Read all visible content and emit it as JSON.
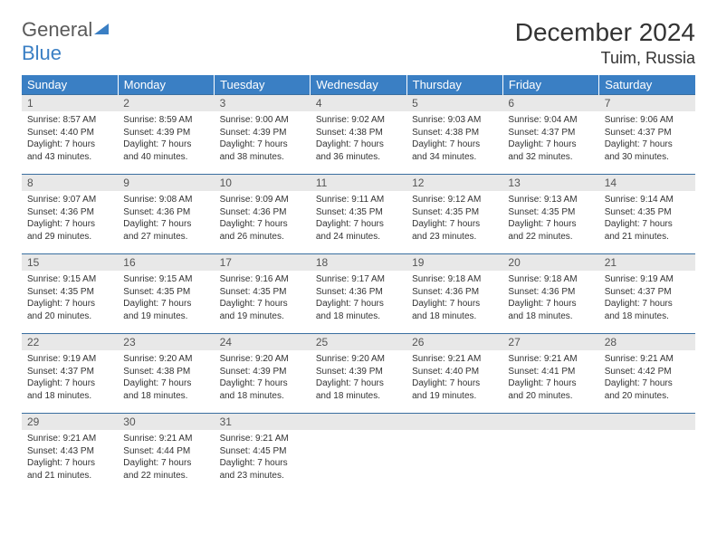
{
  "brand": {
    "part1": "General",
    "part2": "Blue"
  },
  "title": "December 2024",
  "location": "Tuim, Russia",
  "colors": {
    "header_bg": "#3a7fc4",
    "header_text": "#ffffff",
    "daynum_bg": "#e8e8e8",
    "border": "#3a6fa0",
    "brand_gray": "#5a5a5a",
    "brand_blue": "#3a7fc4"
  },
  "dayHeaders": [
    "Sunday",
    "Monday",
    "Tuesday",
    "Wednesday",
    "Thursday",
    "Friday",
    "Saturday"
  ],
  "weeks": [
    [
      {
        "n": "1",
        "sr": "8:57 AM",
        "ss": "4:40 PM",
        "dl": "7 hours and 43 minutes."
      },
      {
        "n": "2",
        "sr": "8:59 AM",
        "ss": "4:39 PM",
        "dl": "7 hours and 40 minutes."
      },
      {
        "n": "3",
        "sr": "9:00 AM",
        "ss": "4:39 PM",
        "dl": "7 hours and 38 minutes."
      },
      {
        "n": "4",
        "sr": "9:02 AM",
        "ss": "4:38 PM",
        "dl": "7 hours and 36 minutes."
      },
      {
        "n": "5",
        "sr": "9:03 AM",
        "ss": "4:38 PM",
        "dl": "7 hours and 34 minutes."
      },
      {
        "n": "6",
        "sr": "9:04 AM",
        "ss": "4:37 PM",
        "dl": "7 hours and 32 minutes."
      },
      {
        "n": "7",
        "sr": "9:06 AM",
        "ss": "4:37 PM",
        "dl": "7 hours and 30 minutes."
      }
    ],
    [
      {
        "n": "8",
        "sr": "9:07 AM",
        "ss": "4:36 PM",
        "dl": "7 hours and 29 minutes."
      },
      {
        "n": "9",
        "sr": "9:08 AM",
        "ss": "4:36 PM",
        "dl": "7 hours and 27 minutes."
      },
      {
        "n": "10",
        "sr": "9:09 AM",
        "ss": "4:36 PM",
        "dl": "7 hours and 26 minutes."
      },
      {
        "n": "11",
        "sr": "9:11 AM",
        "ss": "4:35 PM",
        "dl": "7 hours and 24 minutes."
      },
      {
        "n": "12",
        "sr": "9:12 AM",
        "ss": "4:35 PM",
        "dl": "7 hours and 23 minutes."
      },
      {
        "n": "13",
        "sr": "9:13 AM",
        "ss": "4:35 PM",
        "dl": "7 hours and 22 minutes."
      },
      {
        "n": "14",
        "sr": "9:14 AM",
        "ss": "4:35 PM",
        "dl": "7 hours and 21 minutes."
      }
    ],
    [
      {
        "n": "15",
        "sr": "9:15 AM",
        "ss": "4:35 PM",
        "dl": "7 hours and 20 minutes."
      },
      {
        "n": "16",
        "sr": "9:15 AM",
        "ss": "4:35 PM",
        "dl": "7 hours and 19 minutes."
      },
      {
        "n": "17",
        "sr": "9:16 AM",
        "ss": "4:35 PM",
        "dl": "7 hours and 19 minutes."
      },
      {
        "n": "18",
        "sr": "9:17 AM",
        "ss": "4:36 PM",
        "dl": "7 hours and 18 minutes."
      },
      {
        "n": "19",
        "sr": "9:18 AM",
        "ss": "4:36 PM",
        "dl": "7 hours and 18 minutes."
      },
      {
        "n": "20",
        "sr": "9:18 AM",
        "ss": "4:36 PM",
        "dl": "7 hours and 18 minutes."
      },
      {
        "n": "21",
        "sr": "9:19 AM",
        "ss": "4:37 PM",
        "dl": "7 hours and 18 minutes."
      }
    ],
    [
      {
        "n": "22",
        "sr": "9:19 AM",
        "ss": "4:37 PM",
        "dl": "7 hours and 18 minutes."
      },
      {
        "n": "23",
        "sr": "9:20 AM",
        "ss": "4:38 PM",
        "dl": "7 hours and 18 minutes."
      },
      {
        "n": "24",
        "sr": "9:20 AM",
        "ss": "4:39 PM",
        "dl": "7 hours and 18 minutes."
      },
      {
        "n": "25",
        "sr": "9:20 AM",
        "ss": "4:39 PM",
        "dl": "7 hours and 18 minutes."
      },
      {
        "n": "26",
        "sr": "9:21 AM",
        "ss": "4:40 PM",
        "dl": "7 hours and 19 minutes."
      },
      {
        "n": "27",
        "sr": "9:21 AM",
        "ss": "4:41 PM",
        "dl": "7 hours and 20 minutes."
      },
      {
        "n": "28",
        "sr": "9:21 AM",
        "ss": "4:42 PM",
        "dl": "7 hours and 20 minutes."
      }
    ],
    [
      {
        "n": "29",
        "sr": "9:21 AM",
        "ss": "4:43 PM",
        "dl": "7 hours and 21 minutes."
      },
      {
        "n": "30",
        "sr": "9:21 AM",
        "ss": "4:44 PM",
        "dl": "7 hours and 22 minutes."
      },
      {
        "n": "31",
        "sr": "9:21 AM",
        "ss": "4:45 PM",
        "dl": "7 hours and 23 minutes."
      },
      {
        "empty": true
      },
      {
        "empty": true
      },
      {
        "empty": true
      },
      {
        "empty": true
      }
    ]
  ],
  "labels": {
    "sunrise": "Sunrise:",
    "sunset": "Sunset:",
    "daylight": "Daylight:"
  }
}
